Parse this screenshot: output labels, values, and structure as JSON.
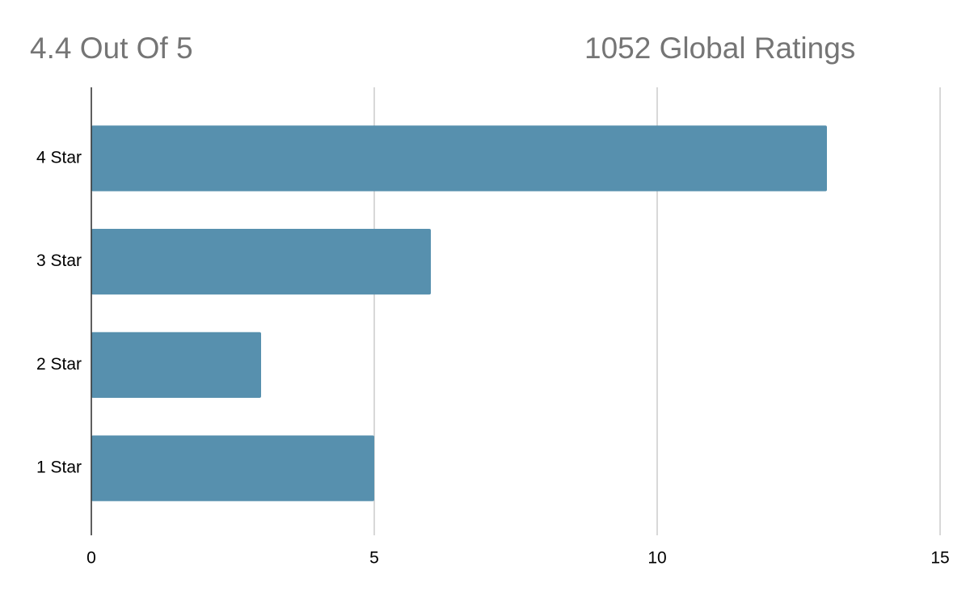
{
  "chart_data": {
    "type": "bar",
    "orientation": "horizontal",
    "title": "4.4 Out Of 5",
    "subtitle": "1052 Global Ratings",
    "categories": [
      "4 Star",
      "3 Star",
      "2 Star",
      "1 Star"
    ],
    "values": [
      13,
      6,
      3,
      5
    ],
    "color": "#5790ae",
    "xlim": [
      0,
      15
    ],
    "xticks": [
      0,
      5,
      10,
      15
    ],
    "grid": true
  }
}
